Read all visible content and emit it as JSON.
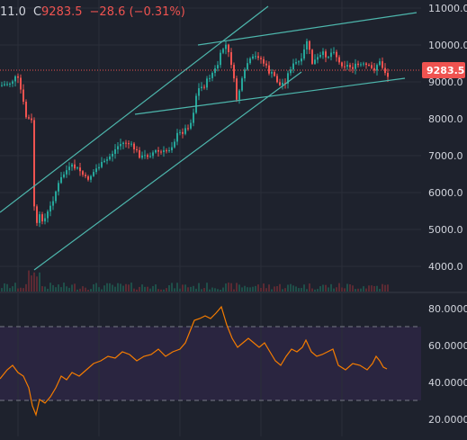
{
  "legend": {
    "prefix_value": "11.0",
    "close_label": "C",
    "close_value": "9283.5",
    "change": "−28.6 (−0.31%)"
  },
  "price_axis": {
    "ticks": [
      "11000.0",
      "10000.0",
      "9000.0",
      "8000.0",
      "7000.0",
      "6000.0",
      "5000.0",
      "4000.0"
    ],
    "last_price_label": "9283.5"
  },
  "rsi_axis": {
    "ticks": [
      "80.0000",
      "60.0000",
      "40.0000",
      "20.0000"
    ]
  },
  "colors": {
    "background": "#1e222d",
    "grid": "#2a2e39",
    "up_candle": "#26a69a",
    "down_candle": "#ef5350",
    "trendline": "#4db6ac",
    "rsi_line": "#f57c00",
    "rsi_band": "#2a2540",
    "last_price_badge": "#ef5350"
  }
}
